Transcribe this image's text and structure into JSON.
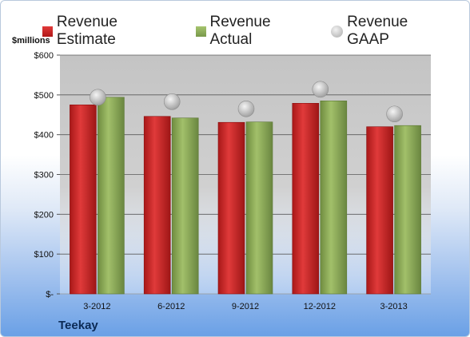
{
  "legend": {
    "estimate": "Revenue Estimate",
    "actual": "Revenue Actual",
    "gaap": "Revenue GAAP"
  },
  "unit_label": "$millions",
  "company": "Teekay",
  "colors": {
    "estimate": "#c62828",
    "actual": "#8aa95b",
    "gaap": "#b5b5b5",
    "plot_bg": "#c8c8c8"
  },
  "chart_data": {
    "type": "bar",
    "categories": [
      "3-2012",
      "6-2012",
      "9-2012",
      "12-2012",
      "3-2013"
    ],
    "series": [
      {
        "name": "Revenue Estimate",
        "values": [
          475,
          446,
          431,
          479,
          420
        ]
      },
      {
        "name": "Revenue Actual",
        "values": [
          494,
          442,
          432,
          485,
          423
        ]
      },
      {
        "name": "Revenue GAAP",
        "values": [
          494,
          483,
          465,
          514,
          452
        ]
      }
    ],
    "yticks": [
      "$-",
      "$100",
      "$200",
      "$300",
      "$400",
      "$500",
      "$600"
    ],
    "ylim": [
      0,
      600
    ],
    "ylabel": "$millions",
    "grid": true,
    "legend_position": "top"
  }
}
